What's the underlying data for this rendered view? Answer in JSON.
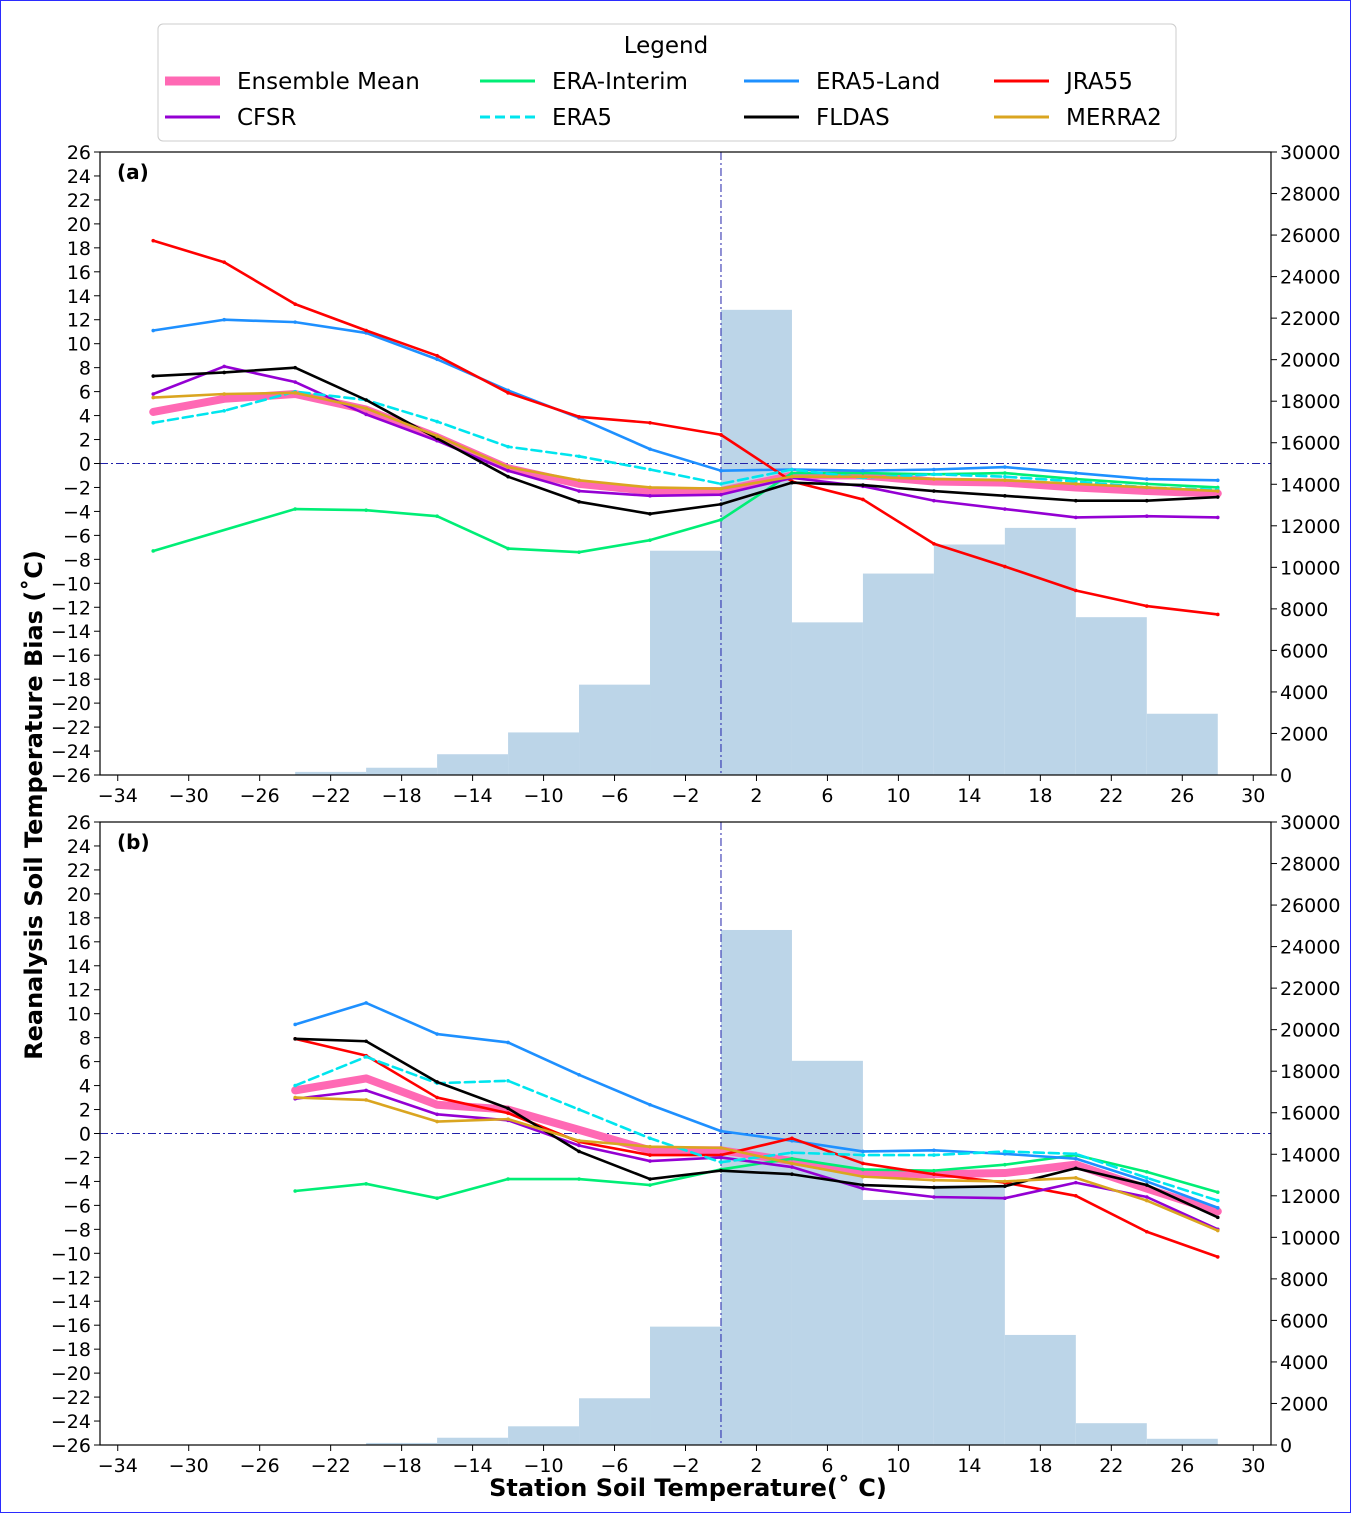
{
  "legend": {
    "title": "Legend",
    "entries": [
      {
        "label": "Ensemble Mean",
        "color": "#ff69b4",
        "style": "thick"
      },
      {
        "label": "ERA-Interim",
        "color": "#00ee76",
        "style": "solid"
      },
      {
        "label": "ERA5-Land",
        "color": "#1e90ff",
        "style": "solid"
      },
      {
        "label": "JRA55",
        "color": "#ff0000",
        "style": "solid"
      },
      {
        "label": "CFSR",
        "color": "#9400d3",
        "style": "solid"
      },
      {
        "label": "ERA5",
        "color": "#00e5ee",
        "style": "dashed"
      },
      {
        "label": "FLDAS",
        "color": "#000000",
        "style": "solid"
      },
      {
        "label": "MERRA2",
        "color": "#daa520",
        "style": "solid"
      }
    ]
  },
  "axes_text": {
    "ylabel": "Reanalysis Soil Temperature Bias ($^\\circ$C)",
    "xlabel": "Station Soil Temperature($^\\circ$ C)"
  },
  "chart_data": [
    {
      "type": "line",
      "panel_label": "(a)",
      "xlim": [
        -35,
        31
      ],
      "ylim": [
        -26,
        26
      ],
      "y2lim": [
        0,
        30000
      ],
      "xticks": [
        -34,
        -30,
        -26,
        -22,
        -18,
        -14,
        -10,
        -6,
        -2,
        2,
        6,
        10,
        14,
        18,
        22,
        26,
        30
      ],
      "yticks": [
        -26,
        -24,
        -22,
        -20,
        -18,
        -16,
        -14,
        -12,
        -10,
        -8,
        -6,
        -4,
        -2,
        0,
        2,
        4,
        6,
        8,
        10,
        12,
        14,
        16,
        18,
        20,
        22,
        24,
        26
      ],
      "y2ticks": [
        0,
        2000,
        4000,
        6000,
        8000,
        10000,
        12000,
        14000,
        16000,
        18000,
        20000,
        22000,
        24000,
        26000,
        28000,
        30000
      ],
      "reference_lines": {
        "x": 0,
        "y": 0
      },
      "histogram": {
        "bin_edges": [
          -32,
          -28,
          -24,
          -20,
          -16,
          -12,
          -8,
          -4,
          0,
          4,
          8,
          12,
          16,
          20,
          24,
          28
        ],
        "counts": [
          0,
          20,
          150,
          350,
          1000,
          2050,
          4350,
          10800,
          22400,
          7350,
          9700,
          11100,
          11900,
          7600,
          2950
        ]
      },
      "x": [
        -32,
        -28,
        -24,
        -20,
        -16,
        -12,
        -8,
        -4,
        0,
        4,
        8,
        12,
        16,
        20,
        24,
        28
      ],
      "series": [
        {
          "name": "Ensemble Mean",
          "values": [
            4.3,
            5.4,
            5.8,
            4.5,
            2.2,
            -0.4,
            -1.7,
            -2.3,
            -2.3,
            -1.0,
            -1.0,
            -1.5,
            -1.6,
            -2.0,
            -2.3,
            -2.5
          ]
        },
        {
          "name": "ERA-Interim",
          "values": [
            -7.3,
            null,
            -3.8,
            -3.9,
            -4.4,
            -7.1,
            -7.4,
            -6.4,
            -4.7,
            -0.8,
            -0.8,
            -0.9,
            -0.8,
            -1.3,
            -1.7,
            -2.0
          ]
        },
        {
          "name": "ERA5-Land",
          "values": [
            11.1,
            12.0,
            11.8,
            10.9,
            8.7,
            6.1,
            3.8,
            1.2,
            -0.6,
            -0.5,
            -0.6,
            -0.5,
            -0.3,
            -0.8,
            -1.3,
            -1.4
          ]
        },
        {
          "name": "JRA55",
          "values": [
            18.6,
            16.8,
            13.3,
            11.1,
            9.0,
            5.9,
            3.9,
            3.4,
            2.4,
            -1.5,
            -3.0,
            -6.7,
            -8.6,
            -10.6,
            -11.9,
            -12.6
          ]
        },
        {
          "name": "CFSR",
          "values": [
            5.8,
            8.1,
            6.8,
            4.1,
            1.9,
            -0.6,
            -2.3,
            -2.7,
            -2.6,
            -1.2,
            -1.9,
            -3.1,
            -3.8,
            -4.5,
            -4.4,
            -4.5
          ]
        },
        {
          "name": "ERA5",
          "values": [
            3.4,
            4.4,
            6.0,
            5.3,
            3.5,
            1.4,
            0.6,
            -0.5,
            -1.7,
            -0.5,
            -1.2,
            -0.9,
            -1.1,
            -1.5,
            -2.0,
            -2.2
          ]
        },
        {
          "name": "FLDAS",
          "values": [
            7.3,
            7.6,
            8.0,
            5.3,
            2.1,
            -1.1,
            -3.2,
            -4.2,
            -3.4,
            -1.6,
            -1.8,
            -2.3,
            -2.7,
            -3.1,
            -3.1,
            -2.8
          ]
        },
        {
          "name": "MERRA2",
          "values": [
            5.5,
            5.8,
            5.9,
            4.6,
            2.3,
            -0.3,
            -1.4,
            -2.0,
            -2.1,
            -1.1,
            -1.1,
            -1.3,
            -1.4,
            -1.7,
            -2.0,
            -2.3
          ]
        }
      ]
    },
    {
      "type": "line",
      "panel_label": "(b)",
      "xlim": [
        -35,
        31
      ],
      "ylim": [
        -26,
        26
      ],
      "y2lim": [
        0,
        30000
      ],
      "xticks": [
        -34,
        -30,
        -26,
        -22,
        -18,
        -14,
        -10,
        -6,
        -2,
        2,
        6,
        10,
        14,
        18,
        22,
        26,
        30
      ],
      "yticks": [
        -26,
        -24,
        -22,
        -20,
        -18,
        -16,
        -14,
        -12,
        -10,
        -8,
        -6,
        -4,
        -2,
        0,
        2,
        4,
        6,
        8,
        10,
        12,
        14,
        16,
        18,
        20,
        22,
        24,
        26
      ],
      "y2ticks": [
        0,
        2000,
        4000,
        6000,
        8000,
        10000,
        12000,
        14000,
        16000,
        18000,
        20000,
        22000,
        24000,
        26000,
        28000,
        30000
      ],
      "reference_lines": {
        "x": 0,
        "y": 0
      },
      "histogram": {
        "bin_edges": [
          -32,
          -28,
          -24,
          -20,
          -16,
          -12,
          -8,
          -4,
          0,
          4,
          8,
          12,
          16,
          20,
          24,
          28
        ],
        "counts": [
          0,
          0,
          0,
          100,
          350,
          900,
          2250,
          5700,
          24800,
          18500,
          11800,
          12500,
          5300,
          1050,
          300
        ]
      },
      "x": [
        -24,
        -20,
        -16,
        -12,
        -8,
        -4,
        0,
        4,
        8,
        12,
        16,
        20,
        24,
        28
      ],
      "series": [
        {
          "name": "Ensemble Mean",
          "values": [
            3.6,
            4.6,
            2.4,
            2.0,
            0.3,
            -1.4,
            -1.4,
            -2.3,
            -3.3,
            -3.4,
            -3.3,
            -2.6,
            -4.6,
            -6.5
          ]
        },
        {
          "name": "ERA-Interim",
          "values": [
            -4.8,
            -4.2,
            -5.4,
            -3.8,
            -3.8,
            -4.3,
            -3.0,
            -2.1,
            -3.0,
            -3.1,
            -2.6,
            -1.8,
            -3.2,
            -4.9
          ]
        },
        {
          "name": "ERA5-Land",
          "values": [
            9.1,
            10.9,
            8.3,
            7.6,
            4.9,
            2.4,
            0.2,
            -0.6,
            -1.5,
            -1.4,
            -1.7,
            -2.1,
            -4.0,
            -6.2
          ]
        },
        {
          "name": "JRA55",
          "values": [
            7.9,
            6.5,
            3.0,
            1.7,
            -0.7,
            -1.8,
            -1.8,
            -0.4,
            -2.5,
            -3.4,
            -4.1,
            -5.2,
            -8.2,
            -10.3
          ]
        },
        {
          "name": "CFSR",
          "values": [
            2.9,
            3.6,
            1.6,
            1.1,
            -1.0,
            -2.3,
            -2.0,
            -2.8,
            -4.6,
            -5.3,
            -5.4,
            -4.1,
            -5.3,
            -8.0
          ]
        },
        {
          "name": "ERA5",
          "values": [
            4.0,
            6.4,
            4.2,
            4.4,
            2.0,
            -0.4,
            -2.4,
            -1.6,
            -1.8,
            -1.8,
            -1.5,
            -1.7,
            -3.7,
            -5.6
          ]
        },
        {
          "name": "FLDAS",
          "values": [
            7.9,
            7.7,
            4.3,
            2.1,
            -1.5,
            -3.8,
            -3.1,
            -3.4,
            -4.3,
            -4.5,
            -4.4,
            -2.9,
            -4.3,
            -7.0
          ]
        },
        {
          "name": "MERRA2",
          "values": [
            3.0,
            2.8,
            1.0,
            1.2,
            -0.6,
            -1.1,
            -1.2,
            -2.5,
            -3.6,
            -3.9,
            -4.0,
            -3.7,
            -5.6,
            -8.1
          ]
        }
      ]
    }
  ]
}
